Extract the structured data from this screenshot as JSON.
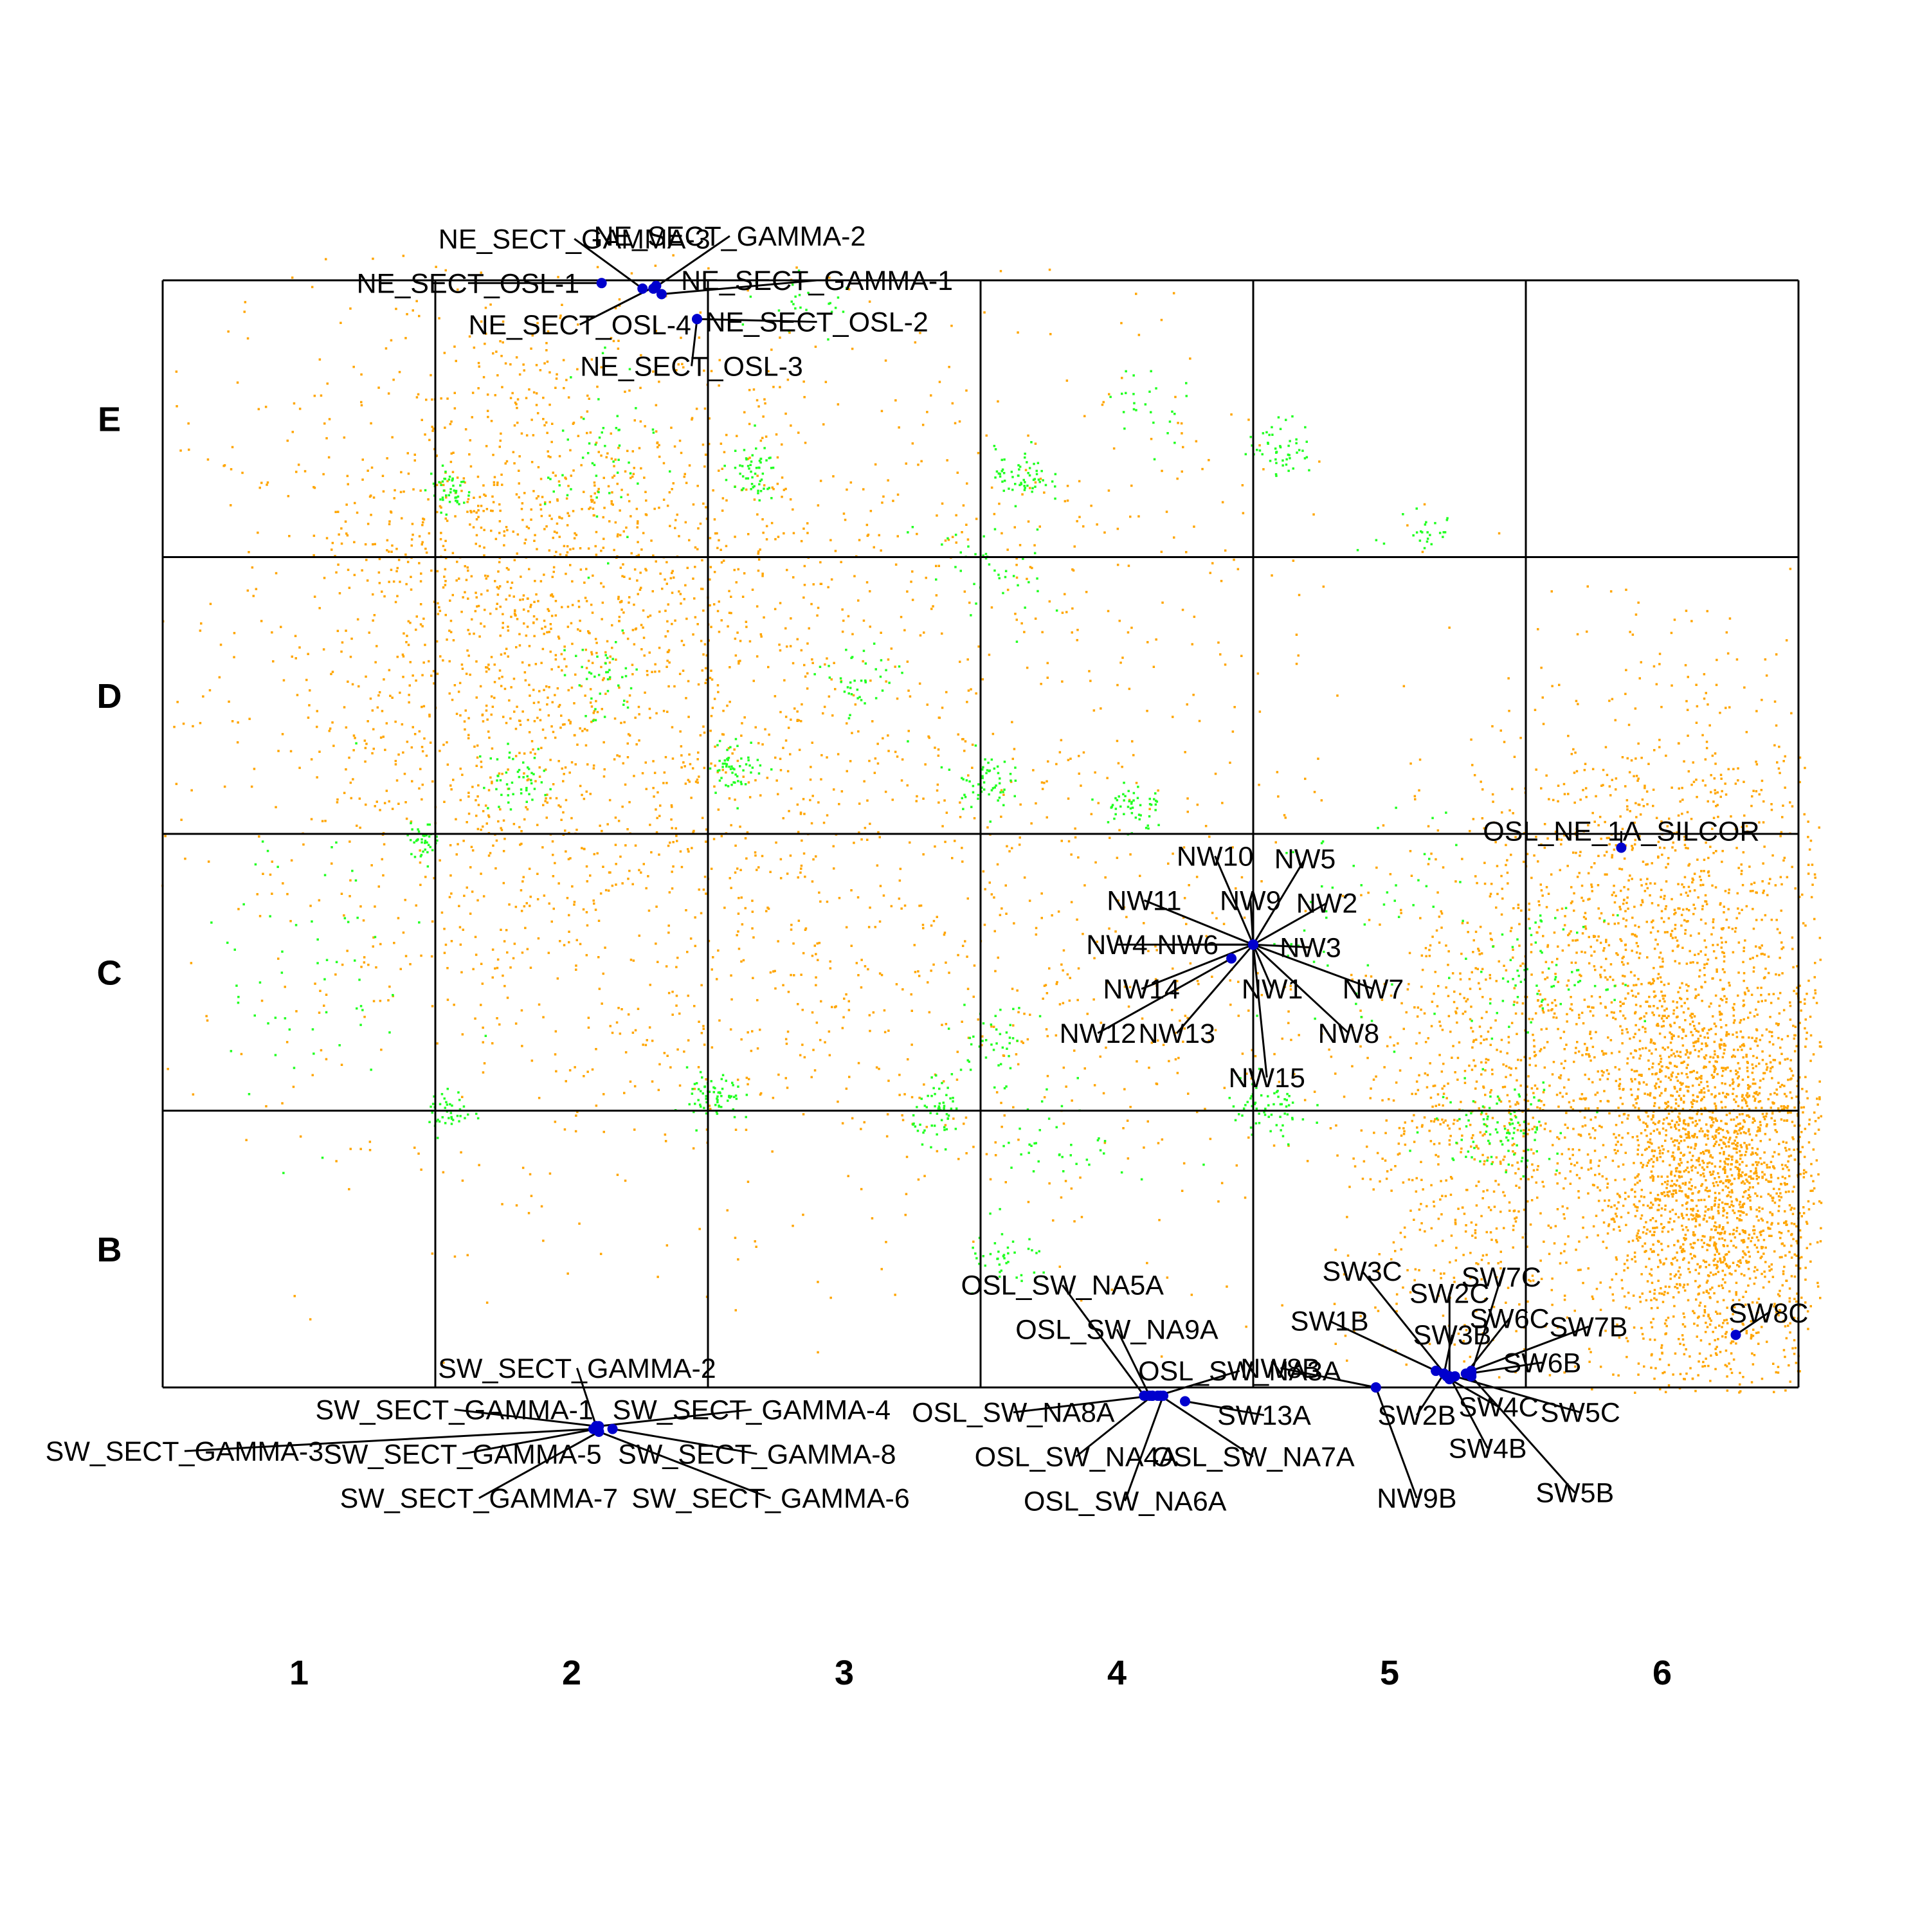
{
  "colors": {
    "background": "#ffffff",
    "grid": "#000000",
    "orange_points": "#FFA500",
    "green_points": "#22FF22",
    "sample_points": "#0000CD",
    "leader_lines": "#000000"
  },
  "chart_data": {
    "type": "scatter",
    "title": "",
    "xlabel": "",
    "ylabel": "",
    "xlim": [
      0,
      6
    ],
    "ylim": [
      0,
      4
    ],
    "grid": true,
    "legend": "none",
    "column_labels": [
      "1",
      "2",
      "3",
      "4",
      "5",
      "6"
    ],
    "row_labels": [
      "E",
      "D",
      "C",
      "B"
    ],
    "background_clusters": {
      "orange": [
        {
          "x": 1.3,
          "y": 2.45,
          "sx": 0.6,
          "sy": 0.75,
          "n": 1400
        },
        {
          "x": 1.4,
          "y": 3.1,
          "sx": 0.45,
          "sy": 0.45,
          "n": 600
        },
        {
          "x": 2.3,
          "y": 1.9,
          "sx": 0.6,
          "sy": 0.7,
          "n": 650
        },
        {
          "x": 3.2,
          "y": 2.9,
          "sx": 0.6,
          "sy": 0.55,
          "n": 300
        },
        {
          "x": 3.5,
          "y": 1.4,
          "sx": 0.55,
          "sy": 0.45,
          "n": 250
        },
        {
          "x": 5.7,
          "y": 0.75,
          "sx": 0.22,
          "sy": 0.38,
          "n": 2200
        },
        {
          "x": 5.45,
          "y": 1.6,
          "sx": 0.35,
          "sy": 0.5,
          "n": 1400
        },
        {
          "x": 4.8,
          "y": 0.9,
          "sx": 0.25,
          "sy": 0.45,
          "n": 650
        }
      ],
      "green": [
        {
          "x": 1.05,
          "y": 3.25,
          "sx": 0.04,
          "sy": 0.04,
          "n": 45
        },
        {
          "x": 2.15,
          "y": 3.3,
          "sx": 0.05,
          "sy": 0.05,
          "n": 55
        },
        {
          "x": 3.15,
          "y": 3.3,
          "sx": 0.05,
          "sy": 0.05,
          "n": 60
        },
        {
          "x": 4.1,
          "y": 3.4,
          "sx": 0.06,
          "sy": 0.05,
          "n": 50
        },
        {
          "x": 2.1,
          "y": 2.25,
          "sx": 0.05,
          "sy": 0.05,
          "n": 55
        },
        {
          "x": 1.3,
          "y": 2.2,
          "sx": 0.07,
          "sy": 0.06,
          "n": 50
        },
        {
          "x": 3.0,
          "y": 2.2,
          "sx": 0.05,
          "sy": 0.05,
          "n": 55
        },
        {
          "x": 3.55,
          "y": 2.1,
          "sx": 0.06,
          "sy": 0.05,
          "n": 50
        },
        {
          "x": 1.05,
          "y": 1.0,
          "sx": 0.04,
          "sy": 0.04,
          "n": 40
        },
        {
          "x": 0.95,
          "y": 1.98,
          "sx": 0.03,
          "sy": 0.03,
          "n": 35
        },
        {
          "x": 2.02,
          "y": 1.05,
          "sx": 0.05,
          "sy": 0.05,
          "n": 65
        },
        {
          "x": 2.85,
          "y": 1.0,
          "sx": 0.05,
          "sy": 0.05,
          "n": 55
        },
        {
          "x": 3.1,
          "y": 0.45,
          "sx": 0.08,
          "sy": 0.06,
          "n": 40
        },
        {
          "x": 4.05,
          "y": 1.0,
          "sx": 0.08,
          "sy": 0.06,
          "n": 60
        },
        {
          "x": 4.9,
          "y": 0.95,
          "sx": 0.12,
          "sy": 0.08,
          "n": 100
        },
        {
          "x": 5.05,
          "y": 1.5,
          "sx": 0.12,
          "sy": 0.1,
          "n": 70
        },
        {
          "x": 3.05,
          "y": 1.25,
          "sx": 0.07,
          "sy": 0.07,
          "n": 40
        },
        {
          "x": 0.5,
          "y": 1.5,
          "sx": 0.25,
          "sy": 0.3,
          "n": 60
        },
        {
          "x": 2.55,
          "y": 2.55,
          "sx": 0.07,
          "sy": 0.07,
          "n": 40
        },
        {
          "x": 1.6,
          "y": 2.55,
          "sx": 0.08,
          "sy": 0.08,
          "n": 40
        },
        {
          "x": 3.3,
          "y": 0.9,
          "sx": 0.12,
          "sy": 0.1,
          "n": 40
        },
        {
          "x": 2.4,
          "y": 3.9,
          "sx": 0.1,
          "sy": 0.06,
          "n": 25
        },
        {
          "x": 4.6,
          "y": 3.1,
          "sx": 0.08,
          "sy": 0.06,
          "n": 25
        },
        {
          "x": 1.6,
          "y": 3.35,
          "sx": 0.1,
          "sy": 0.15,
          "n": 50
        },
        {
          "x": 3.6,
          "y": 3.55,
          "sx": 0.08,
          "sy": 0.08,
          "n": 25
        },
        {
          "x": 3.0,
          "y": 2.95,
          "sx": 0.12,
          "sy": 0.12,
          "n": 40
        },
        {
          "x": 4.4,
          "y": 1.7,
          "sx": 0.2,
          "sy": 0.2,
          "n": 50
        }
      ]
    },
    "samples": [
      {
        "label": "NE_SECT_GAMMA-3",
        "x": 1.76,
        "y": 3.97,
        "lx": 1.51,
        "ly": 4.15
      },
      {
        "label": "NE_SECT_GAMMA-2",
        "x": 1.8,
        "y": 3.97,
        "lx": 2.08,
        "ly": 4.16
      },
      {
        "label": "NE_SECT_GAMMA-1",
        "x": 1.83,
        "y": 3.95,
        "lx": 2.4,
        "ly": 4.0
      },
      {
        "label": "NE_SECT_OSL-1",
        "x": 1.61,
        "y": 3.99,
        "lx": 1.12,
        "ly": 3.99
      },
      {
        "label": "NE_SECT_OSL-4",
        "x": 1.81,
        "y": 3.98,
        "lx": 1.53,
        "ly": 3.84
      },
      {
        "label": "NE_SECT_OSL-2",
        "x": 1.96,
        "y": 3.86,
        "lx": 2.4,
        "ly": 3.85
      },
      {
        "label": "NE_SECT_OSL-3",
        "x": 1.96,
        "y": 3.86,
        "lx": 1.94,
        "ly": 3.69
      },
      {
        "label": "NW10",
        "x": 4.0,
        "y": 1.6,
        "lx": 3.86,
        "ly": 1.92
      },
      {
        "label": "NW5",
        "x": 4.0,
        "y": 1.6,
        "lx": 4.19,
        "ly": 1.91
      },
      {
        "label": "NW11",
        "x": 4.0,
        "y": 1.6,
        "lx": 3.6,
        "ly": 1.76
      },
      {
        "label": "NW9",
        "x": 4.0,
        "y": 1.6,
        "lx": 3.99,
        "ly": 1.76
      },
      {
        "label": "NW2",
        "x": 4.0,
        "y": 1.6,
        "lx": 4.27,
        "ly": 1.75
      },
      {
        "label": "NW4",
        "x": 4.0,
        "y": 1.6,
        "lx": 3.5,
        "ly": 1.6
      },
      {
        "label": "NW6",
        "x": 4.0,
        "y": 1.6,
        "lx": 3.76,
        "ly": 1.6
      },
      {
        "label": "NW3",
        "x": 4.0,
        "y": 1.6,
        "lx": 4.21,
        "ly": 1.59
      },
      {
        "label": "NW14",
        "x": 4.0,
        "y": 1.6,
        "lx": 3.59,
        "ly": 1.44
      },
      {
        "label": "NW1",
        "x": 4.0,
        "y": 1.6,
        "lx": 4.07,
        "ly": 1.44
      },
      {
        "label": "NW7",
        "x": 4.0,
        "y": 1.6,
        "lx": 4.44,
        "ly": 1.44
      },
      {
        "label": "NW12",
        "x": 3.92,
        "y": 1.55,
        "lx": 3.43,
        "ly": 1.28
      },
      {
        "label": "NW13",
        "x": 4.0,
        "y": 1.6,
        "lx": 3.72,
        "ly": 1.28
      },
      {
        "label": "NW8",
        "x": 4.0,
        "y": 1.6,
        "lx": 4.35,
        "ly": 1.28
      },
      {
        "label": "NW15",
        "x": 4.0,
        "y": 1.6,
        "lx": 4.05,
        "ly": 1.12
      },
      {
        "label": "OSL_NE_1A_SILCOR",
        "x": 5.35,
        "y": 1.95,
        "lx": 5.35,
        "ly": 2.01
      },
      {
        "label": "OSL_SW_NA5A",
        "x": 3.6,
        "y": -0.03,
        "lx": 3.3,
        "ly": 0.37
      },
      {
        "label": "OSL_SW_NA9A",
        "x": 3.62,
        "y": -0.03,
        "lx": 3.5,
        "ly": 0.21
      },
      {
        "label": "OSL_SW_NA3A",
        "x": 3.65,
        "y": -0.03,
        "lx": 3.95,
        "ly": 0.06
      },
      {
        "label": "OSL_SW_NA8A",
        "x": 3.63,
        "y": -0.03,
        "lx": 3.12,
        "ly": -0.09
      },
      {
        "label": "SW13A",
        "x": 3.75,
        "y": -0.05,
        "lx": 4.04,
        "ly": -0.1
      },
      {
        "label": "OSL_SW_NA4A",
        "x": 3.63,
        "y": -0.03,
        "lx": 3.35,
        "ly": -0.25
      },
      {
        "label": "OSL_SW_NA7A",
        "x": 3.66,
        "y": -0.03,
        "lx": 4.0,
        "ly": -0.25
      },
      {
        "label": "OSL_SW_NA6A",
        "x": 3.67,
        "y": -0.03,
        "lx": 3.53,
        "ly": -0.41
      },
      {
        "label": "SW_SECT_GAMMA-2",
        "x": 1.59,
        "y": -0.14,
        "lx": 1.52,
        "ly": 0.07
      },
      {
        "label": "SW_SECT_GAMMA-1",
        "x": 1.59,
        "y": -0.14,
        "lx": 1.07,
        "ly": -0.08
      },
      {
        "label": "SW_SECT_GAMMA-4",
        "x": 1.6,
        "y": -0.14,
        "lx": 2.16,
        "ly": -0.08
      },
      {
        "label": "SW_SECT_GAMMA-3",
        "x": 1.58,
        "y": -0.15,
        "lx": 0.08,
        "ly": -0.23
      },
      {
        "label": "SW_SECT_GAMMA-5",
        "x": 1.59,
        "y": -0.15,
        "lx": 1.1,
        "ly": -0.24
      },
      {
        "label": "SW_SECT_GAMMA-8",
        "x": 1.65,
        "y": -0.15,
        "lx": 2.18,
        "ly": -0.24
      },
      {
        "label": "SW_SECT_GAMMA-7",
        "x": 1.6,
        "y": -0.16,
        "lx": 1.16,
        "ly": -0.4
      },
      {
        "label": "SW_SECT_GAMMA-6",
        "x": 1.6,
        "y": -0.16,
        "lx": 2.23,
        "ly": -0.4
      },
      {
        "label": "SW3C",
        "x": 4.71,
        "y": 0.04,
        "lx": 4.4,
        "ly": 0.42
      },
      {
        "label": "SW2C",
        "x": 4.72,
        "y": 0.04,
        "lx": 4.72,
        "ly": 0.34
      },
      {
        "label": "SW7C",
        "x": 4.8,
        "y": 0.05,
        "lx": 4.91,
        "ly": 0.4
      },
      {
        "label": "SW1B",
        "x": 4.67,
        "y": 0.06,
        "lx": 4.28,
        "ly": 0.24
      },
      {
        "label": "SW3B",
        "x": 4.7,
        "y": 0.05,
        "lx": 4.73,
        "ly": 0.19
      },
      {
        "label": "SW6C",
        "x": 4.78,
        "y": 0.05,
        "lx": 4.94,
        "ly": 0.25
      },
      {
        "label": "SW7B",
        "x": 4.8,
        "y": 0.06,
        "lx": 5.23,
        "ly": 0.22
      },
      {
        "label": "SW8C",
        "x": 5.77,
        "y": 0.19,
        "lx": 5.89,
        "ly": 0.27
      },
      {
        "label": "NW8B",
        "x": 4.45,
        "y": 0.0,
        "lx": 4.1,
        "ly": 0.07
      },
      {
        "label": "SW6B",
        "x": 4.79,
        "y": 0.05,
        "lx": 5.06,
        "ly": 0.09
      },
      {
        "label": "SW2B",
        "x": 4.7,
        "y": 0.05,
        "lx": 4.6,
        "ly": -0.1
      },
      {
        "label": "SW4C",
        "x": 4.72,
        "y": 0.03,
        "lx": 4.9,
        "ly": -0.07
      },
      {
        "label": "SW5C",
        "x": 4.74,
        "y": 0.04,
        "lx": 5.2,
        "ly": -0.09
      },
      {
        "label": "SW4B",
        "x": 4.72,
        "y": 0.04,
        "lx": 4.86,
        "ly": -0.22
      },
      {
        "label": "NW9B",
        "x": 4.45,
        "y": 0.0,
        "lx": 4.6,
        "ly": -0.4
      },
      {
        "label": "SW5B",
        "x": 4.8,
        "y": 0.04,
        "lx": 5.18,
        "ly": -0.38
      }
    ]
  }
}
